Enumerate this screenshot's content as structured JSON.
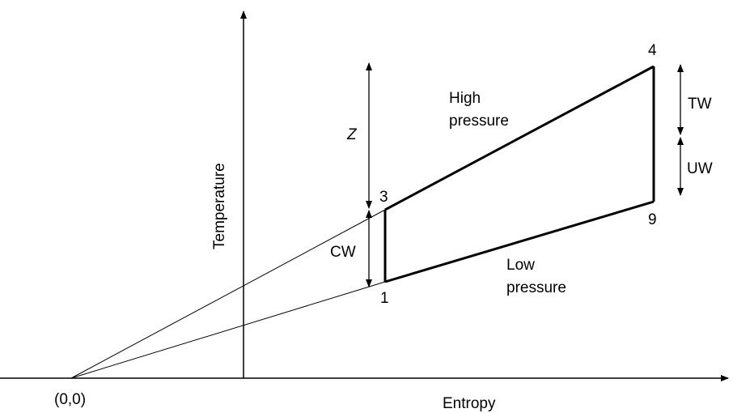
{
  "labels": {
    "origin": "(0,0)",
    "x_axis": "Entropy",
    "y_axis": "Temperature",
    "point_1": "1",
    "point_3": "3",
    "point_4": "4",
    "point_9": "9",
    "high_pressure_line1": "High",
    "high_pressure_line2": "pressure",
    "low_pressure_line1": "Low",
    "low_pressure_line2": "pressure",
    "z": "Z",
    "cw": "CW",
    "tw": "TW",
    "uw": "UW"
  },
  "colors": {
    "line": "#000000",
    "background": "#ffffff"
  }
}
